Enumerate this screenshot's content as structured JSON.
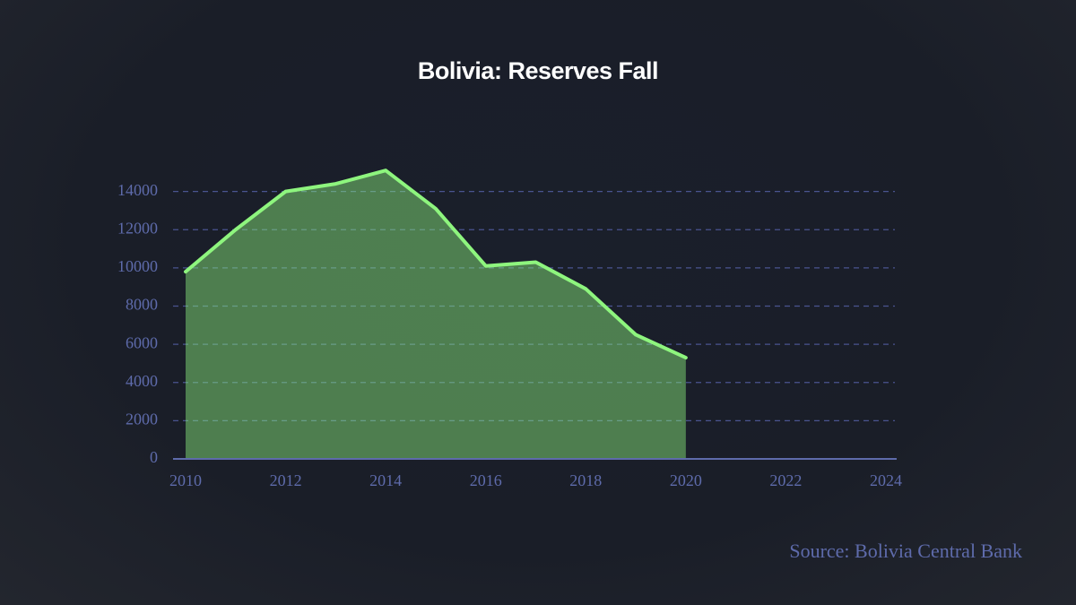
{
  "chart_data": {
    "type": "area",
    "title": "Bolivia: Reserves Fall",
    "source": "Source: Bolivia Central Bank",
    "x": [
      2010,
      2011,
      2012,
      2013,
      2014,
      2015,
      2016,
      2017,
      2018,
      2019,
      2020
    ],
    "series": [
      {
        "name": "Reserves",
        "color": "#8ef57e",
        "values": [
          9800,
          12000,
          14000,
          14400,
          15100,
          13100,
          10100,
          10300,
          8900,
          6500,
          5300
        ]
      }
    ],
    "xlim": [
      2010,
      2024
    ],
    "xticks": [
      2010,
      2012,
      2014,
      2016,
      2018,
      2020,
      2022,
      2024
    ],
    "ylim": [
      0,
      16000
    ],
    "yticks": [
      0,
      2000,
      4000,
      6000,
      8000,
      10000,
      12000,
      14000
    ],
    "grid": true
  }
}
